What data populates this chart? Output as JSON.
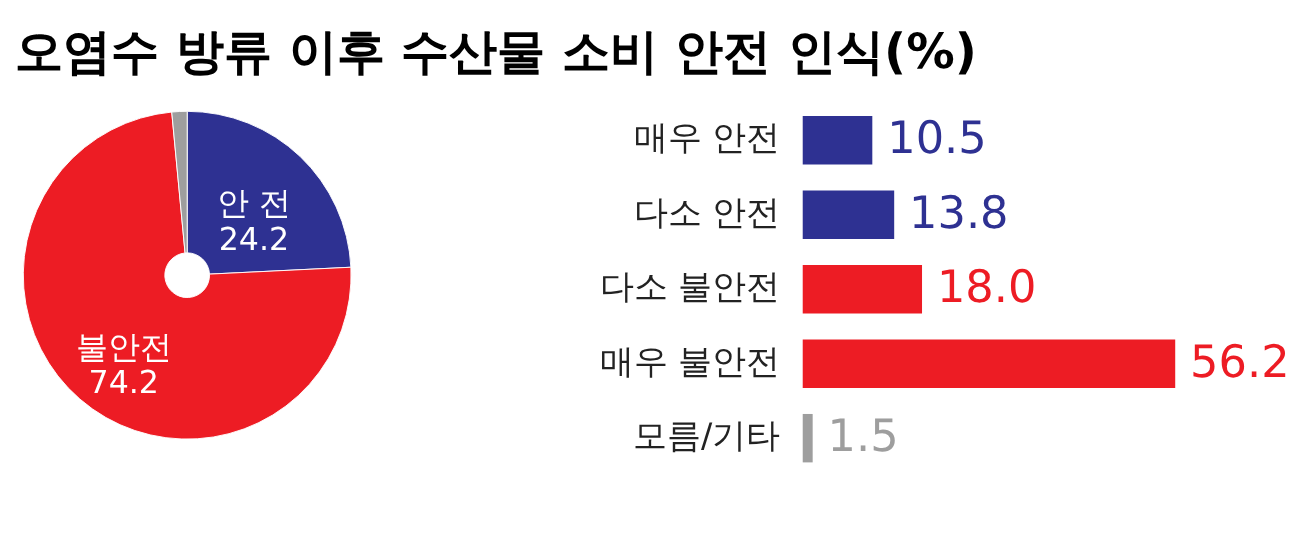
{
  "chart_data": [
    {
      "type": "donut",
      "title": "오염수 방류 이후 수산물 소비 안전 인식(%)",
      "categories": [
        "안 전",
        "불안전",
        null
      ],
      "values": [
        24.2,
        74.2,
        1.5
      ],
      "colors": [
        "#2e3192",
        "#ed1c24",
        "#9e9e9e"
      ],
      "value_labels": [
        "24.2",
        "74.2",
        null
      ]
    },
    {
      "type": "bar",
      "orientation": "horizontal",
      "categories": [
        "매우 안전",
        "다소 안전",
        "다소 불안전",
        "매우 불안전",
        "모름/기타"
      ],
      "values": [
        10.5,
        13.8,
        18.0,
        56.2,
        1.5
      ],
      "colors": [
        "#2e3192",
        "#2e3192",
        "#ed1c24",
        "#ed1c24",
        "#9e9e9e"
      ],
      "value_labels": [
        "10.5",
        "13.8",
        "18.0",
        "56.2",
        "1.5"
      ]
    }
  ]
}
